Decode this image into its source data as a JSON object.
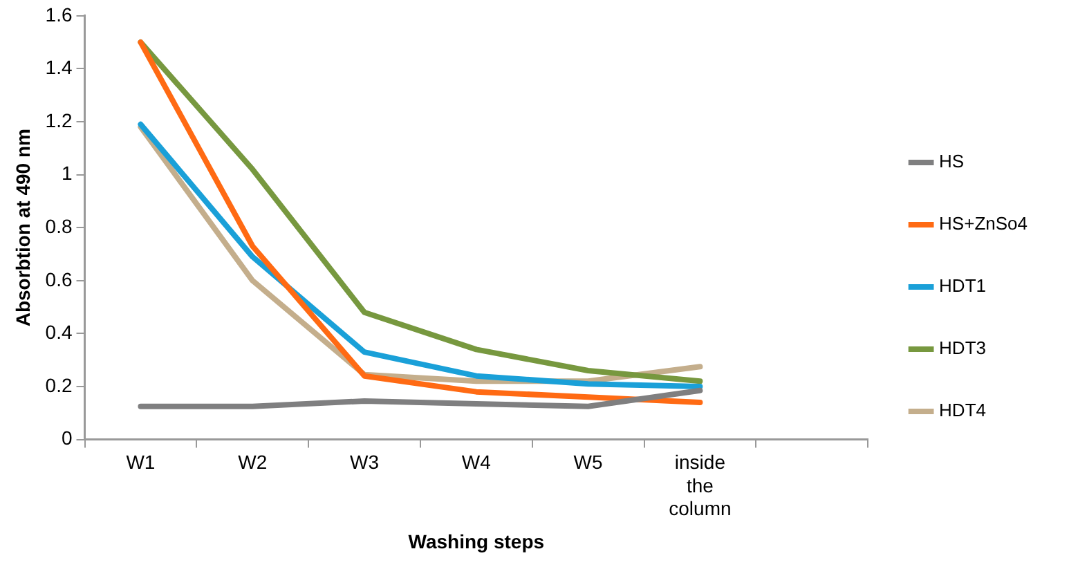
{
  "chart_data": {
    "type": "line",
    "xlabel": "Washing steps",
    "ylabel": "Absorbtion at 490 nm",
    "categories": [
      "W1",
      "W2",
      "W3",
      "W4",
      "W5",
      "inside the column",
      null
    ],
    "ylim": [
      0,
      1.6
    ],
    "yticks": [
      0,
      {
        "value": 0.2,
        "label": "0.2"
      },
      {
        "value": 0.4,
        "label": "0.4"
      },
      {
        "value": 0.6,
        "label": "0.6"
      },
      {
        "value": 0.8,
        "label": "0.8"
      },
      1,
      {
        "value": 1.2,
        "label": "1.2"
      },
      {
        "value": 1.4,
        "label": "1.4"
      },
      {
        "value": 1.6,
        "label": "1.6"
      }
    ],
    "grid": false,
    "legend": "right",
    "marker": "none",
    "line_style": "solid",
    "series": [
      {
        "name": "HS",
        "color": "#7f7f80",
        "values": [
          0.125,
          0.125,
          0.145,
          0.135,
          0.125,
          0.185,
          null
        ]
      },
      {
        "name": "HS+ZnSo4",
        "color": "#ff6a13",
        "values": [
          1.5,
          0.73,
          0.24,
          0.18,
          0.16,
          0.14,
          null
        ]
      },
      {
        "name": "HDT1",
        "color": "#1aa0d8",
        "values": [
          1.19,
          0.69,
          0.33,
          0.24,
          0.21,
          0.2,
          null
        ]
      },
      {
        "name": "HDT3",
        "color": "#77983f",
        "values": [
          1.5,
          1.02,
          0.48,
          0.34,
          0.26,
          0.22,
          null
        ]
      },
      {
        "name": "HDT4",
        "color": "#c4ae8c",
        "values": [
          1.18,
          0.6,
          0.245,
          0.22,
          0.22,
          0.275,
          null
        ]
      }
    ]
  }
}
